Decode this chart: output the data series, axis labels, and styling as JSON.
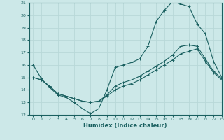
{
  "xlabel": "Humidex (Indice chaleur)",
  "xlim": [
    -0.5,
    23
  ],
  "ylim": [
    12,
    21
  ],
  "xticks": [
    0,
    1,
    2,
    3,
    4,
    5,
    6,
    7,
    8,
    9,
    10,
    11,
    12,
    13,
    14,
    15,
    16,
    17,
    18,
    19,
    20,
    21,
    22,
    23
  ],
  "yticks": [
    12,
    13,
    14,
    15,
    16,
    17,
    18,
    19,
    20,
    21
  ],
  "bg_color": "#cce8e8",
  "grid_color": "#b8d8d8",
  "line_color": "#1a6060",
  "line1_x": [
    0,
    1,
    2,
    3,
    4,
    5,
    6,
    7,
    8,
    9,
    10,
    11,
    12,
    13,
    14,
    15,
    16,
    17,
    18,
    19,
    20,
    21,
    22,
    23
  ],
  "line1_y": [
    16.0,
    14.9,
    14.2,
    13.6,
    13.4,
    13.0,
    12.5,
    12.1,
    12.5,
    14.0,
    15.8,
    16.0,
    16.2,
    16.5,
    17.5,
    19.5,
    20.4,
    21.1,
    20.9,
    20.7,
    19.3,
    18.5,
    16.3,
    15.0
  ],
  "line2_x": [
    0,
    1,
    2,
    3,
    4,
    5,
    6,
    7,
    8,
    9,
    10,
    11,
    12,
    13,
    14,
    15,
    16,
    17,
    18,
    19,
    20,
    21,
    22,
    23
  ],
  "line2_y": [
    15.0,
    14.8,
    14.3,
    13.7,
    13.5,
    13.3,
    13.1,
    13.0,
    13.1,
    13.6,
    14.3,
    14.6,
    14.8,
    15.1,
    15.5,
    15.9,
    16.3,
    16.8,
    17.5,
    17.6,
    17.5,
    16.5,
    15.5,
    14.9
  ],
  "line3_x": [
    0,
    1,
    2,
    3,
    4,
    5,
    6,
    7,
    8,
    9,
    10,
    11,
    12,
    13,
    14,
    15,
    16,
    17,
    18,
    19,
    20,
    21,
    22,
    23
  ],
  "line3_y": [
    15.0,
    14.8,
    14.3,
    13.7,
    13.5,
    13.3,
    13.1,
    13.0,
    13.1,
    13.5,
    14.0,
    14.3,
    14.5,
    14.8,
    15.2,
    15.6,
    16.0,
    16.4,
    16.9,
    17.1,
    17.3,
    16.3,
    15.4,
    14.8
  ]
}
